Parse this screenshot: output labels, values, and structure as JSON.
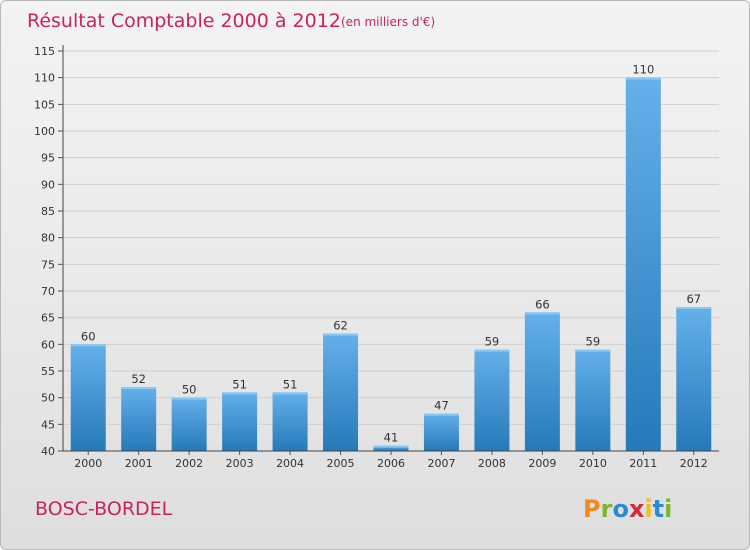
{
  "header": {
    "title": "Résultat Comptable 2000 à 2012",
    "subtitle": "(en milliers d'€)"
  },
  "footer": {
    "commune": "BOSC-BORDEL",
    "logo_text": "Proxiti",
    "logo_letters": [
      "P",
      "r",
      "o",
      "x",
      "i",
      "t",
      "i"
    ],
    "logo_colors": [
      "#f08a1c",
      "#7ab828",
      "#2a8ad4",
      "#d42a3c",
      "#f0c01c",
      "#2a8ad4",
      "#7ab828"
    ]
  },
  "colors": {
    "bar_top": "#64b0ea",
    "bar_bottom": "#2679b8",
    "title": "#c8245a",
    "grid": "#cfcfcf"
  },
  "chart_data": {
    "type": "bar",
    "title": "Résultat Comptable 2000 à 2012",
    "subtitle": "(en milliers d'€)",
    "xlabel": "",
    "ylabel": "",
    "categories": [
      "2000",
      "2001",
      "2002",
      "2003",
      "2004",
      "2005",
      "2006",
      "2007",
      "2008",
      "2009",
      "2010",
      "2011",
      "2012"
    ],
    "values": [
      60,
      52,
      50,
      51,
      51,
      62,
      41,
      47,
      59,
      66,
      59,
      110,
      67
    ],
    "ylim": [
      40,
      115
    ],
    "yticks": [
      40,
      45,
      50,
      55,
      60,
      65,
      70,
      75,
      80,
      85,
      90,
      95,
      100,
      105,
      110,
      115
    ],
    "grid": true,
    "data_labels": true,
    "legend": "none"
  }
}
